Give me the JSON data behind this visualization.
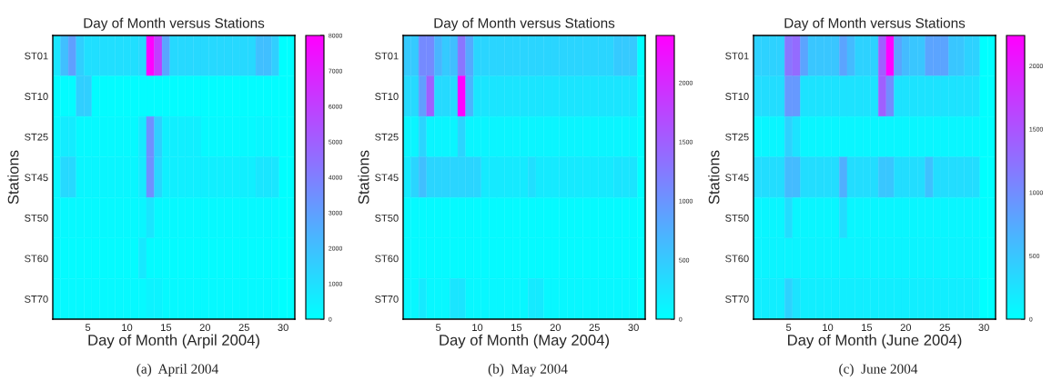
{
  "chart_data": [
    {
      "type": "heatmap",
      "title": "Day of Month versus Stations",
      "xlabel": "Day of Month (Arpil 2004)",
      "ylabel": "Stations",
      "categories": [
        null,
        null,
        null,
        null,
        "5",
        null,
        null,
        null,
        null,
        "10",
        null,
        null,
        null,
        null,
        "15",
        null,
        null,
        null,
        null,
        "20",
        null,
        null,
        null,
        null,
        "25",
        null,
        null,
        null,
        null,
        "30",
        null
      ],
      "y_categories": [
        "ST01",
        "ST10",
        "ST25",
        "ST45",
        "ST50",
        "ST60",
        "ST70"
      ],
      "cells": [
        [
          800,
          2000,
          3000,
          1500,
          1000,
          1000,
          1000,
          1000,
          1000,
          1000,
          1000,
          1200,
          8000,
          6000,
          2800,
          1200,
          1200,
          1200,
          1200,
          1200,
          1200,
          1200,
          1200,
          1200,
          1200,
          1200,
          2000,
          2000,
          1500,
          0,
          0
        ],
        [
          100,
          100,
          100,
          1500,
          1500,
          100,
          100,
          100,
          100,
          100,
          100,
          100,
          100,
          100,
          100,
          100,
          100,
          100,
          100,
          100,
          100,
          100,
          100,
          100,
          100,
          100,
          100,
          100,
          100,
          0,
          0
        ],
        [
          200,
          600,
          600,
          200,
          200,
          200,
          200,
          200,
          200,
          200,
          200,
          700,
          3500,
          1500,
          500,
          500,
          500,
          500,
          500,
          200,
          200,
          200,
          200,
          200,
          200,
          200,
          300,
          300,
          200,
          0,
          0
        ],
        [
          300,
          1200,
          1200,
          300,
          300,
          300,
          300,
          300,
          300,
          300,
          300,
          700,
          3500,
          1300,
          500,
          500,
          500,
          500,
          500,
          500,
          500,
          500,
          500,
          500,
          500,
          500,
          800,
          800,
          800,
          0,
          0
        ],
        [
          200,
          200,
          200,
          200,
          200,
          200,
          200,
          200,
          200,
          200,
          200,
          300,
          800,
          200,
          200,
          200,
          200,
          200,
          200,
          200,
          200,
          200,
          200,
          200,
          200,
          200,
          200,
          200,
          200,
          0,
          0
        ],
        [
          150,
          150,
          150,
          150,
          150,
          150,
          150,
          150,
          150,
          150,
          150,
          700,
          150,
          150,
          150,
          150,
          150,
          150,
          150,
          150,
          150,
          150,
          150,
          150,
          150,
          150,
          150,
          150,
          150,
          0,
          0
        ],
        [
          200,
          200,
          200,
          200,
          200,
          200,
          200,
          200,
          200,
          200,
          200,
          200,
          400,
          400,
          200,
          200,
          200,
          200,
          200,
          200,
          200,
          200,
          200,
          200,
          200,
          200,
          200,
          200,
          200,
          0,
          0
        ]
      ],
      "clim": [
        0,
        8000
      ],
      "cticks": [
        0,
        1000,
        2000,
        3000,
        4000,
        5000,
        6000,
        7000,
        8000
      ],
      "annotations": [
        "(a)  April 2004"
      ]
    },
    {
      "type": "heatmap",
      "title": "Day of Month versus Stations",
      "xlabel": "Day of Month (May 2004)",
      "ylabel": "Stations",
      "categories": [
        null,
        null,
        null,
        null,
        "5",
        null,
        null,
        null,
        null,
        "10",
        null,
        null,
        null,
        null,
        "15",
        null,
        null,
        null,
        null,
        "20",
        null,
        null,
        null,
        null,
        "25",
        null,
        null,
        null,
        null,
        "30",
        null
      ],
      "y_categories": [
        "ST01",
        "ST10",
        "ST25",
        "ST45",
        "ST50",
        "ST60",
        "ST70"
      ],
      "cells": [
        [
          500,
          500,
          1100,
          1100,
          700,
          500,
          600,
          1300,
          800,
          400,
          400,
          400,
          400,
          400,
          400,
          400,
          400,
          400,
          400,
          400,
          400,
          400,
          400,
          400,
          400,
          400,
          400,
          500,
          500,
          500,
          0
        ],
        [
          350,
          350,
          900,
          1500,
          350,
          350,
          350,
          2400,
          700,
          250,
          250,
          250,
          250,
          250,
          250,
          250,
          250,
          250,
          250,
          250,
          250,
          250,
          250,
          250,
          250,
          250,
          250,
          250,
          250,
          250,
          0
        ],
        [
          100,
          100,
          400,
          100,
          100,
          100,
          100,
          400,
          100,
          100,
          100,
          100,
          100,
          100,
          100,
          100,
          100,
          100,
          100,
          100,
          100,
          100,
          100,
          100,
          100,
          100,
          100,
          100,
          100,
          100,
          0
        ],
        [
          200,
          400,
          600,
          400,
          400,
          400,
          400,
          400,
          400,
          400,
          200,
          200,
          200,
          200,
          200,
          200,
          300,
          200,
          200,
          200,
          200,
          200,
          200,
          200,
          200,
          200,
          200,
          250,
          250,
          250,
          0
        ],
        [
          50,
          50,
          50,
          50,
          50,
          50,
          50,
          50,
          50,
          50,
          50,
          50,
          50,
          50,
          50,
          50,
          50,
          50,
          50,
          50,
          50,
          50,
          50,
          50,
          50,
          50,
          50,
          50,
          50,
          50,
          0
        ],
        [
          50,
          50,
          50,
          50,
          50,
          50,
          50,
          50,
          50,
          50,
          50,
          50,
          50,
          50,
          50,
          50,
          50,
          50,
          50,
          50,
          50,
          50,
          50,
          50,
          50,
          50,
          50,
          50,
          50,
          50,
          0
        ],
        [
          80,
          80,
          200,
          80,
          80,
          80,
          250,
          250,
          80,
          80,
          80,
          80,
          80,
          80,
          80,
          80,
          200,
          200,
          80,
          80,
          80,
          80,
          80,
          80,
          80,
          80,
          80,
          80,
          80,
          80,
          0
        ]
      ],
      "clim": [
        0,
        2400
      ],
      "cticks": [
        0,
        500,
        1000,
        1500,
        2000
      ],
      "annotations": [
        "(b)  May 2004"
      ]
    },
    {
      "type": "heatmap",
      "title": "Day of Month versus Stations",
      "xlabel": "Day of Month (June 2004)",
      "ylabel": "Stations",
      "categories": [
        null,
        null,
        null,
        null,
        "5",
        null,
        null,
        null,
        null,
        "10",
        null,
        null,
        null,
        null,
        "15",
        null,
        null,
        null,
        null,
        "20",
        null,
        null,
        null,
        null,
        "25",
        null,
        null,
        null,
        null,
        "30",
        null
      ],
      "y_categories": [
        "ST01",
        "ST10",
        "ST25",
        "ST45",
        "ST50",
        "ST60",
        "ST70"
      ],
      "cells": [
        [
          400,
          400,
          400,
          400,
          1200,
          1300,
          800,
          500,
          500,
          500,
          500,
          800,
          600,
          400,
          400,
          400,
          1400,
          2240,
          800,
          600,
          500,
          500,
          800,
          800,
          800,
          500,
          500,
          400,
          400,
          0,
          0
        ],
        [
          300,
          300,
          300,
          300,
          900,
          900,
          250,
          250,
          250,
          250,
          250,
          250,
          250,
          250,
          250,
          250,
          1400,
          1000,
          250,
          250,
          250,
          250,
          250,
          250,
          250,
          250,
          250,
          250,
          250,
          0,
          0
        ],
        [
          80,
          80,
          80,
          80,
          400,
          250,
          80,
          80,
          80,
          80,
          80,
          80,
          80,
          80,
          80,
          80,
          80,
          80,
          80,
          80,
          80,
          80,
          80,
          80,
          80,
          80,
          80,
          80,
          80,
          0,
          0
        ],
        [
          300,
          300,
          300,
          300,
          600,
          600,
          300,
          300,
          300,
          300,
          300,
          700,
          300,
          300,
          300,
          300,
          500,
          500,
          300,
          300,
          300,
          300,
          550,
          300,
          300,
          300,
          300,
          300,
          300,
          0,
          0
        ],
        [
          80,
          80,
          80,
          80,
          300,
          80,
          80,
          80,
          80,
          80,
          80,
          300,
          80,
          80,
          80,
          80,
          80,
          80,
          80,
          80,
          80,
          80,
          80,
          80,
          80,
          80,
          80,
          80,
          80,
          0,
          0
        ],
        [
          100,
          100,
          100,
          100,
          100,
          100,
          100,
          100,
          100,
          100,
          100,
          100,
          100,
          100,
          100,
          100,
          100,
          100,
          100,
          100,
          100,
          100,
          100,
          100,
          100,
          100,
          100,
          100,
          100,
          0,
          0
        ],
        [
          150,
          150,
          150,
          150,
          400,
          250,
          150,
          150,
          150,
          150,
          150,
          150,
          150,
          150,
          150,
          150,
          150,
          150,
          150,
          150,
          150,
          150,
          150,
          150,
          150,
          150,
          150,
          150,
          150,
          0,
          0
        ]
      ],
      "clim": [
        0,
        2240
      ],
      "cticks": [
        0,
        500,
        1000,
        1500,
        2000
      ],
      "annotations": [
        "(c)  June 2004"
      ]
    }
  ]
}
